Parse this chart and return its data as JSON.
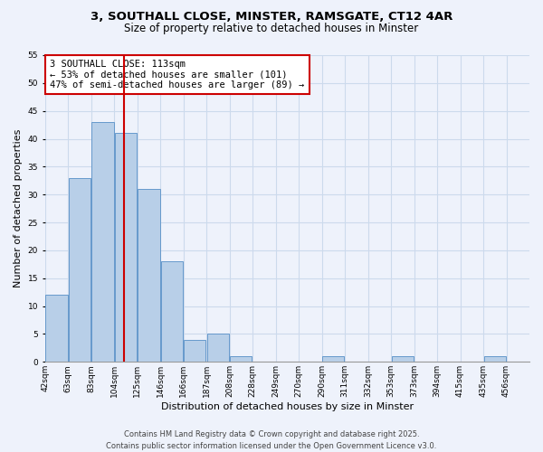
{
  "title_line1": "3, SOUTHALL CLOSE, MINSTER, RAMSGATE, CT12 4AR",
  "title_line2": "Size of property relative to detached houses in Minster",
  "xlabel": "Distribution of detached houses by size in Minster",
  "ylabel": "Number of detached properties",
  "bin_labels": [
    "42sqm",
    "63sqm",
    "83sqm",
    "104sqm",
    "125sqm",
    "146sqm",
    "166sqm",
    "187sqm",
    "208sqm",
    "228sqm",
    "249sqm",
    "270sqm",
    "290sqm",
    "311sqm",
    "332sqm",
    "353sqm",
    "373sqm",
    "394sqm",
    "415sqm",
    "435sqm",
    "456sqm"
  ],
  "bin_edges": [
    0,
    1,
    2,
    3,
    4,
    5,
    6,
    7,
    8,
    9,
    10,
    11,
    12,
    13,
    14,
    15,
    16,
    17,
    18,
    19,
    20,
    21
  ],
  "counts": [
    12,
    33,
    43,
    41,
    31,
    18,
    4,
    5,
    1,
    0,
    0,
    0,
    1,
    0,
    0,
    1,
    0,
    0,
    0,
    1,
    0
  ],
  "bar_color": "#b8cfe8",
  "bar_edge_color": "#6699cc",
  "grid_color": "#ccdaec",
  "background_color": "#eef2fb",
  "vline_bin": 3.43,
  "vline_color": "#cc0000",
  "annotation_line1": "3 SOUTHALL CLOSE: 113sqm",
  "annotation_line2": "← 53% of detached houses are smaller (101)",
  "annotation_line3": "47% of semi-detached houses are larger (89) →",
  "annotation_box_color": "#ffffff",
  "annotation_box_edge": "#cc0000",
  "ylim": [
    0,
    55
  ],
  "yticks": [
    0,
    5,
    10,
    15,
    20,
    25,
    30,
    35,
    40,
    45,
    50,
    55
  ],
  "footer_line1": "Contains HM Land Registry data © Crown copyright and database right 2025.",
  "footer_line2": "Contains public sector information licensed under the Open Government Licence v3.0.",
  "title_fontsize": 9.5,
  "subtitle_fontsize": 8.5,
  "axis_label_fontsize": 8,
  "tick_fontsize": 6.5,
  "annotation_fontsize": 7.5,
  "footer_fontsize": 6
}
